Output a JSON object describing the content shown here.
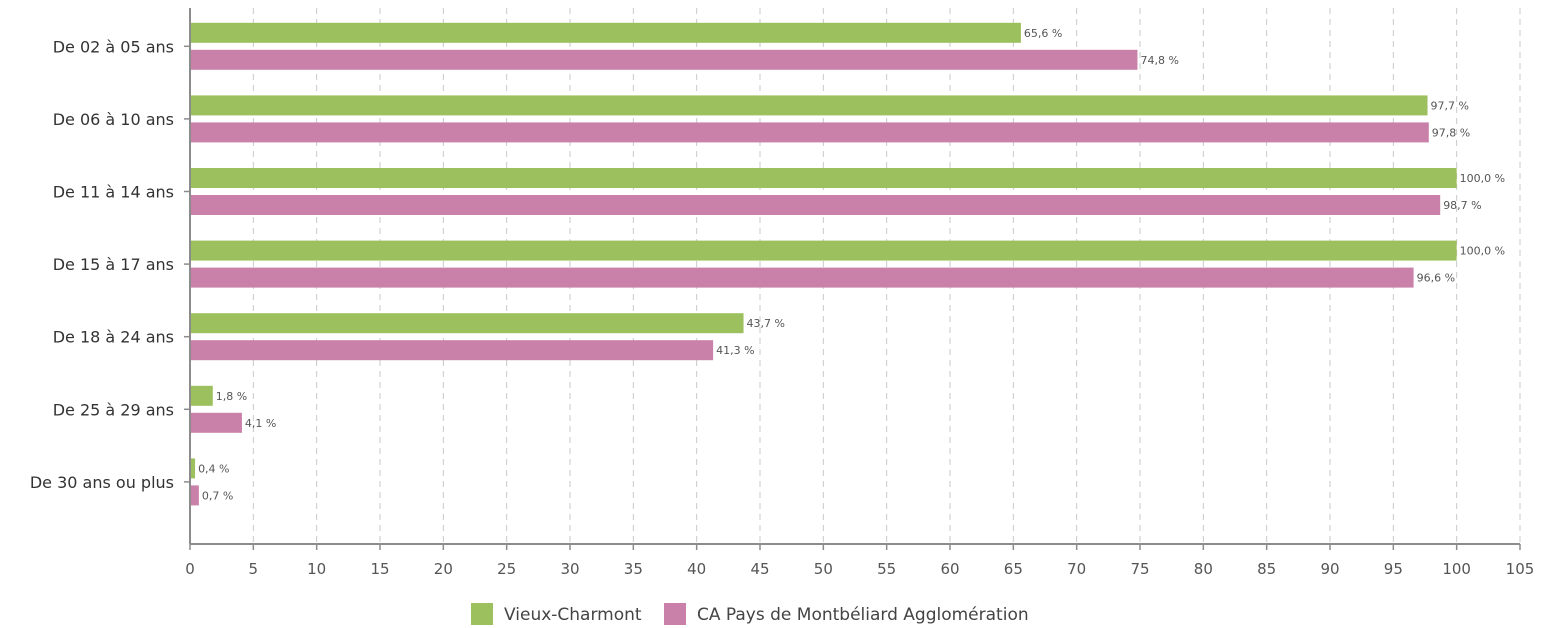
{
  "chart_data": {
    "type": "bar",
    "orientation": "horizontal",
    "title": "",
    "xlabel": "",
    "ylabel": "",
    "xlim": [
      0,
      105
    ],
    "x_ticks": [
      0,
      5,
      10,
      15,
      20,
      25,
      30,
      35,
      40,
      45,
      50,
      55,
      60,
      65,
      70,
      75,
      80,
      85,
      90,
      95,
      100,
      105
    ],
    "categories": [
      "De 02 à 05 ans",
      "De 06 à 10 ans",
      "De 11 à 14 ans",
      "De 15 à 17 ans",
      "De 18 à 24 ans",
      "De 25 à 29 ans",
      "De 30 ans ou plus"
    ],
    "series": [
      {
        "name": "Vieux-Charmont",
        "color": "#9dc05f",
        "values": [
          65.6,
          97.7,
          100.0,
          100.0,
          43.7,
          1.8,
          0.4
        ],
        "labels": [
          "65,6 %",
          "97,7 %",
          "100,0 %",
          "100,0 %",
          "43,7 %",
          "1,8 %",
          "0,4 %"
        ]
      },
      {
        "name": "CA Pays de Montbéliard Agglomération",
        "color": "#c981aa",
        "values": [
          74.8,
          97.8,
          98.7,
          96.6,
          41.3,
          4.1,
          0.7
        ],
        "labels": [
          "74,8 %",
          "97,8 %",
          "98,7 %",
          "96,6 %",
          "41,3 %",
          "4,1 %",
          "0,7 %"
        ]
      }
    ],
    "grid": true,
    "legend_position": "bottom-center"
  }
}
